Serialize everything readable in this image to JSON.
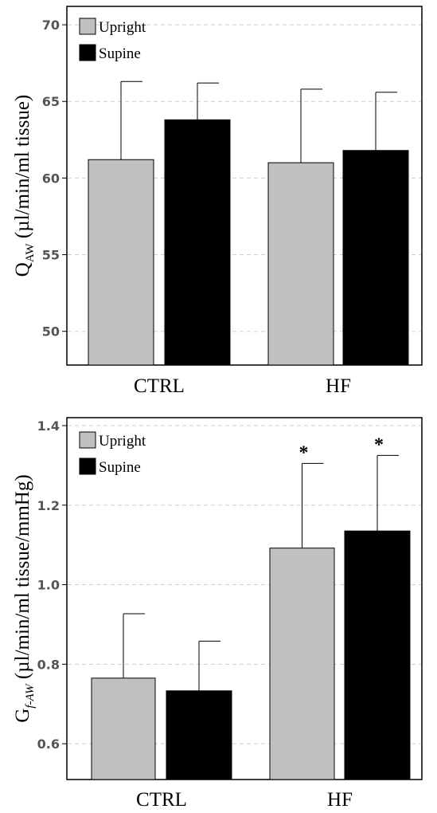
{
  "chart_data": [
    {
      "type": "bar",
      "title": "",
      "ylabel_main": "Q",
      "ylabel_sub": "AW",
      "ylabel_rest": " (µl/min/ml tissue)",
      "xlabel": "",
      "categories": [
        "CTRL",
        "HF"
      ],
      "ylim": [
        47.8,
        71.2
      ],
      "yticks": [
        "50",
        "55",
        "60",
        "65",
        "70"
      ],
      "grid": true,
      "legend_position": "top-left",
      "series": [
        {
          "name": "Upright",
          "color": "#c0c0c0",
          "values": [
            61.2,
            61.0
          ],
          "error": [
            5.1,
            4.8
          ]
        },
        {
          "name": "Supine",
          "color": "#000000",
          "values": [
            63.8,
            61.8
          ],
          "error": [
            2.4,
            3.8
          ]
        }
      ],
      "annotations": []
    },
    {
      "type": "bar",
      "title": "",
      "ylabel_main": "G",
      "ylabel_sub": "f-AW",
      "ylabel_rest": " (µl/min/ml tissue/mmHg)",
      "xlabel": "",
      "categories": [
        "CTRL",
        "HF"
      ],
      "ylim": [
        0.51,
        1.42
      ],
      "yticks": [
        "0.6",
        "0.8",
        "1.0",
        "1.2",
        "1.4"
      ],
      "grid": true,
      "legend_position": "top-left",
      "series": [
        {
          "name": "Upright",
          "color": "#c0c0c0",
          "values": [
            0.765,
            1.092
          ],
          "error": [
            0.162,
            0.213
          ]
        },
        {
          "name": "Supine",
          "color": "#000000",
          "values": [
            0.733,
            1.135
          ],
          "error": [
            0.125,
            0.19
          ]
        }
      ],
      "annotations": [
        {
          "category": "HF",
          "series": "Upright",
          "text": "*"
        },
        {
          "category": "HF",
          "series": "Supine",
          "text": "*"
        }
      ]
    }
  ]
}
